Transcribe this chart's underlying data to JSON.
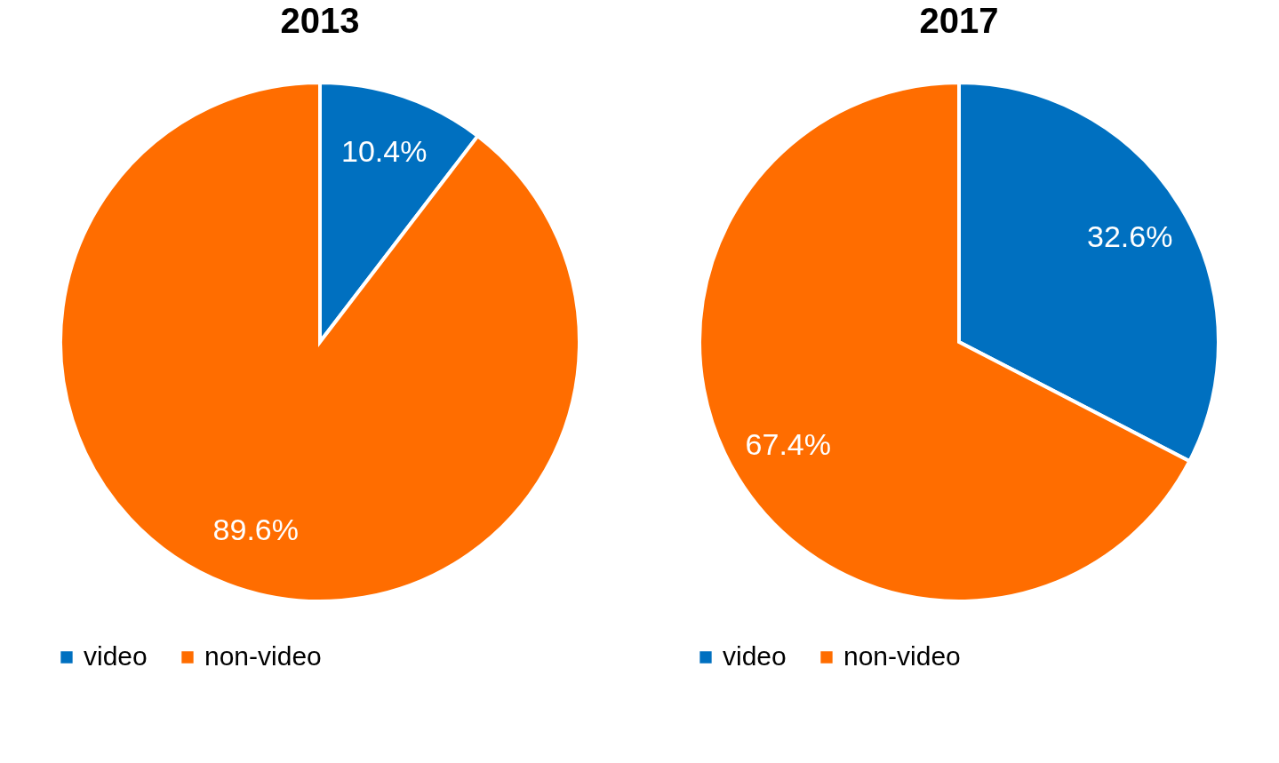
{
  "chart_data": [
    {
      "type": "pie",
      "title": "2013",
      "categories": [
        "video",
        "non-video"
      ],
      "values": [
        10.4,
        89.6
      ],
      "colors": [
        "#0070c0",
        "#ff6d00"
      ],
      "value_labels": [
        "10.4%",
        "89.6%"
      ],
      "legend": "bottom"
    },
    {
      "type": "pie",
      "title": "2017",
      "categories": [
        "video",
        "non-video"
      ],
      "values": [
        32.6,
        67.4
      ],
      "colors": [
        "#0070c0",
        "#ff6d00"
      ],
      "value_labels": [
        "32.6%",
        "67.4%"
      ],
      "legend": "bottom"
    }
  ]
}
